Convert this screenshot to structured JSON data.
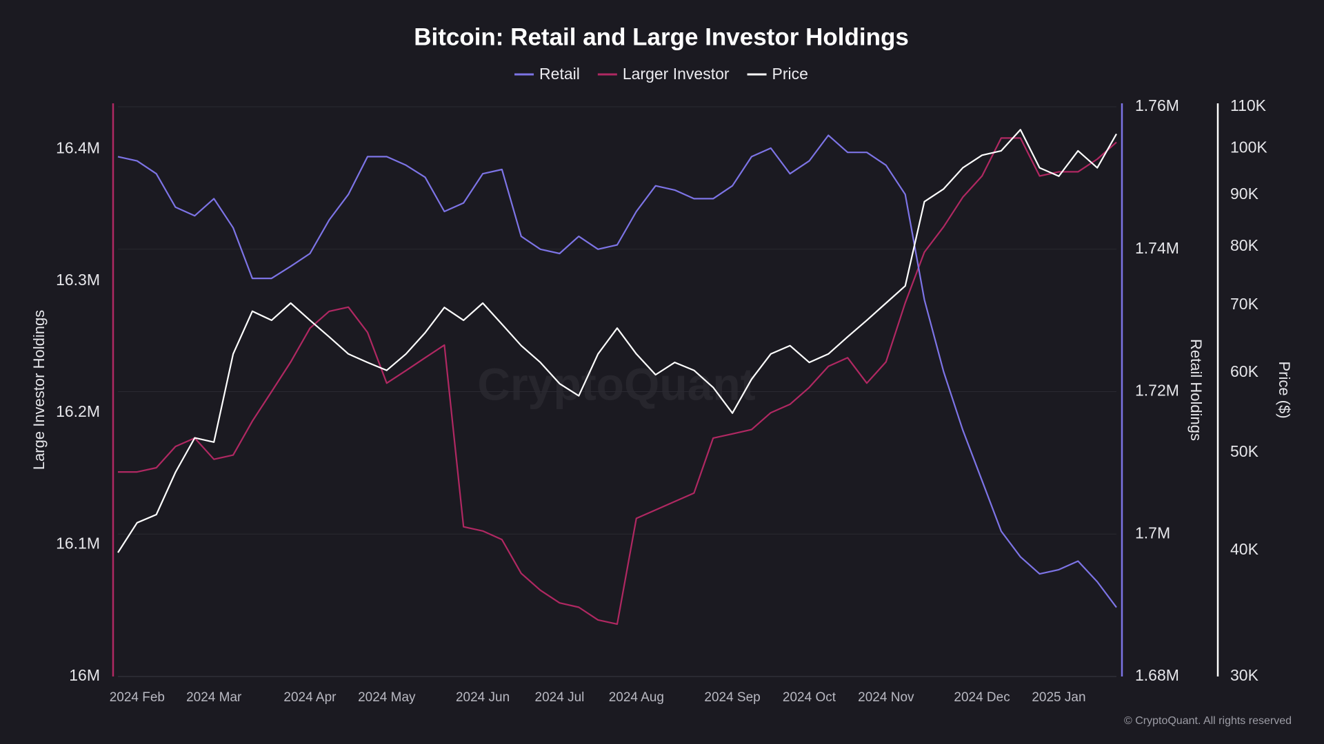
{
  "chart_data": {
    "type": "line",
    "title": "Bitcoin: Retail and Large Investor Holdings",
    "watermark": "CryptoQuant",
    "credit": "© CryptoQuant. All rights reserved",
    "categories": [
      null,
      "2024 Feb",
      null,
      null,
      null,
      "2024 Mar",
      null,
      null,
      null,
      null,
      "2024 Apr",
      null,
      null,
      null,
      "2024 May",
      null,
      null,
      null,
      null,
      "2024 Jun",
      null,
      null,
      null,
      "2024 Jul",
      null,
      null,
      null,
      "2024 Aug",
      null,
      null,
      null,
      null,
      "2024 Sep",
      null,
      null,
      null,
      "2024 Oct",
      null,
      null,
      null,
      "2024 Nov",
      null,
      null,
      null,
      null,
      "2024 Dec",
      null,
      null,
      null,
      "2025 Jan",
      null,
      null,
      null
    ],
    "series": [
      {
        "name": "Retail",
        "color": "#7d74e6",
        "axis": "y2",
        "values": [
          1753000,
          1752400,
          1750600,
          1745900,
          1744700,
          1747100,
          1743000,
          1735900,
          1735900,
          1737600,
          1739400,
          1744100,
          1747700,
          1753000,
          1753000,
          1751800,
          1750100,
          1745300,
          1746500,
          1750600,
          1751200,
          1741800,
          1740000,
          1739400,
          1741800,
          1740000,
          1740600,
          1745300,
          1748900,
          1748300,
          1747100,
          1747100,
          1748900,
          1753000,
          1754200,
          1750600,
          1752400,
          1756000,
          1753600,
          1753600,
          1751800,
          1747700,
          1732900,
          1722800,
          1714600,
          1707500,
          1700400,
          1696800,
          1694400,
          1695000,
          1696200,
          1693300,
          1689700
        ]
      },
      {
        "name": "Larger Investor",
        "color": "#b02862",
        "values": [
          16155100,
          16155100,
          16158300,
          16174400,
          16180800,
          16164700,
          16167900,
          16193600,
          16216000,
          16238500,
          16264100,
          16276900,
          16280100,
          16260900,
          16222400,
          16232000,
          16241700,
          16251300,
          16113500,
          16110300,
          16103800,
          16078200,
          16065400,
          16055800,
          16052500,
          16042900,
          16039700,
          16119900,
          16126300,
          16132700,
          16139100,
          16180800,
          16184000,
          16187200,
          16200000,
          16206400,
          16219200,
          16235200,
          16241700,
          16222400,
          16238500,
          16283300,
          16321800,
          16341000,
          16363400,
          16379500,
          16408300,
          16408300,
          16379500,
          16382700,
          16382700,
          16392300,
          16405100
        ]
      },
      {
        "name": "Price",
        "color": "#ffffff",
        "axis": "y3",
        "values": [
          39800,
          42600,
          43400,
          47800,
          51700,
          51200,
          62600,
          69000,
          67600,
          70300,
          67600,
          65100,
          62600,
          61400,
          60300,
          62600,
          65700,
          69600,
          67600,
          70300,
          67000,
          63800,
          61400,
          58500,
          56900,
          62600,
          66400,
          62600,
          59700,
          61400,
          60300,
          58000,
          54700,
          59100,
          62600,
          63800,
          61400,
          62600,
          65100,
          67600,
          70300,
          73100,
          88600,
          91200,
          95700,
          98500,
          99500,
          104400,
          95700,
          93900,
          99500,
          95700,
          103400
        ]
      }
    ],
    "ylabel": "Large Investor Holdings",
    "y2label": "Retail Holdings",
    "y3label": "Price ($)",
    "ylim": [
      16000000,
      16432000
    ],
    "yticks": [
      {
        "value": 16000000,
        "label": "16M"
      },
      {
        "value": 16100000,
        "label": "16.1M"
      },
      {
        "value": 16200000,
        "label": "16.2M"
      },
      {
        "value": 16300000,
        "label": "16.3M"
      },
      {
        "value": 16400000,
        "label": "16.4M"
      }
    ],
    "y2lim": [
      1680000,
      1760000
    ],
    "y2ticks": [
      {
        "value": 1680000,
        "label": "1.68M"
      },
      {
        "value": 1700000,
        "label": "1.7M"
      },
      {
        "value": 1720000,
        "label": "1.72M"
      },
      {
        "value": 1740000,
        "label": "1.74M"
      },
      {
        "value": 1760000,
        "label": "1.76M"
      }
    ],
    "y3lim": [
      30000,
      110000
    ],
    "y3log": true,
    "y3ticks": [
      {
        "value": 30000,
        "label": "30K"
      },
      {
        "value": 40000,
        "label": "40K"
      },
      {
        "value": 50000,
        "label": "50K"
      },
      {
        "value": 60000,
        "label": "60K"
      },
      {
        "value": 70000,
        "label": "70K"
      },
      {
        "value": 80000,
        "label": "80K"
      },
      {
        "value": 90000,
        "label": "90K"
      },
      {
        "value": 100000,
        "label": "100K"
      },
      {
        "value": 110000,
        "label": "110K"
      }
    ],
    "grid": true,
    "legend": "top"
  }
}
